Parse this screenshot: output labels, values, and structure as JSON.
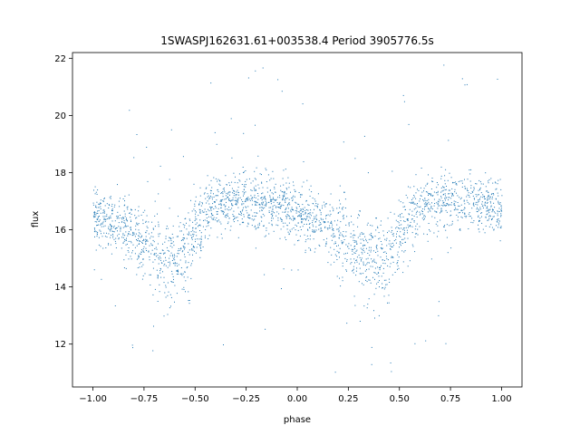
{
  "chart_data": {
    "type": "scatter",
    "title": "1SWASPJ162631.61+003538.4 Period 3905776.5s",
    "xlabel": "phase",
    "ylabel": "flux",
    "xlim": [
      -1.1,
      1.1
    ],
    "ylim": [
      10.5,
      22.2
    ],
    "xticks": [
      -1.0,
      -0.75,
      -0.5,
      -0.25,
      0.0,
      0.25,
      0.5,
      0.75,
      1.0
    ],
    "xtick_labels": [
      "−1.00",
      "−0.75",
      "−0.50",
      "−0.25",
      "0.00",
      "0.25",
      "0.50",
      "0.75",
      "1.00"
    ],
    "yticks": [
      12,
      14,
      16,
      18,
      20,
      22
    ],
    "ytick_labels": [
      "12",
      "14",
      "16",
      "18",
      "20",
      "22"
    ],
    "grid": false,
    "series": [
      {
        "color": "#1f77b4",
        "marker": "dot",
        "phase_range": [
          -1.0,
          1.0
        ],
        "profile": {
          "phase": [
            0.0,
            0.05,
            0.1,
            0.15,
            0.2,
            0.25,
            0.3,
            0.35,
            0.4,
            0.45,
            0.5,
            0.55,
            0.6,
            0.65,
            0.7,
            0.75,
            0.8,
            0.85,
            0.9,
            0.95,
            1.0
          ],
          "median_flux": [
            16.6,
            16.4,
            16.3,
            16.0,
            15.7,
            15.5,
            15.3,
            15.0,
            14.9,
            15.2,
            15.9,
            16.5,
            16.8,
            16.9,
            17.0,
            17.0,
            17.0,
            16.9,
            16.9,
            16.8,
            16.6
          ],
          "spread": [
            0.8,
            0.8,
            0.9,
            1.0,
            1.1,
            1.2,
            1.2,
            1.3,
            1.2,
            1.2,
            1.1,
            1.0,
            0.9,
            0.8,
            0.8,
            0.8,
            0.8,
            0.8,
            0.8,
            0.8,
            0.8
          ]
        }
      }
    ]
  }
}
